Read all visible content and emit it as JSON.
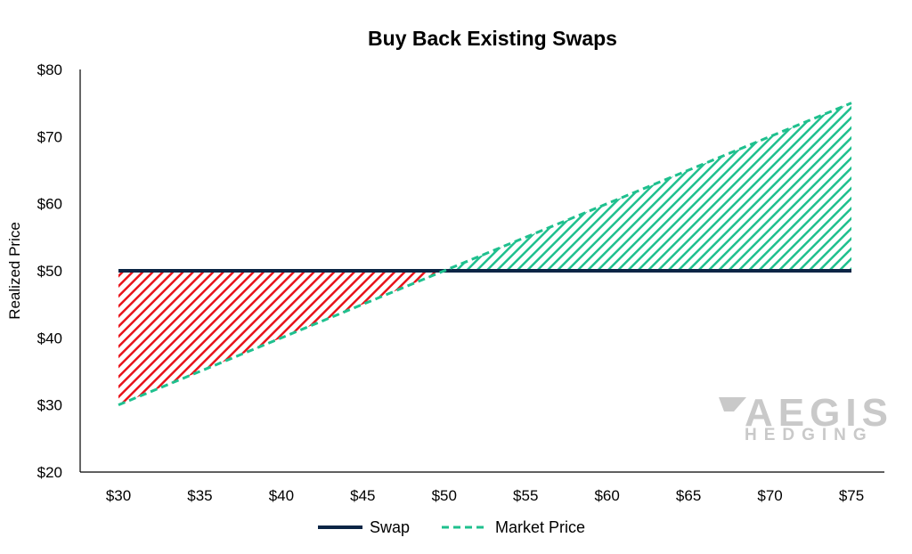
{
  "chart_data": {
    "type": "line",
    "title": "Buy Back Existing Swaps",
    "xlabel": "",
    "ylabel": "Realized Price",
    "x": [
      30,
      35,
      40,
      45,
      50,
      55,
      60,
      65,
      70,
      75
    ],
    "x_tick_labels": [
      "$30",
      "$35",
      "$40",
      "$45",
      "$50",
      "$55",
      "$60",
      "$65",
      "$70",
      "$75"
    ],
    "y_tick_labels": [
      "$20",
      "$30",
      "$40",
      "$50",
      "$60",
      "$70",
      "$80"
    ],
    "ylim": [
      20,
      80
    ],
    "xlim": [
      30,
      75
    ],
    "grid": false,
    "legend_position": "bottom",
    "series": [
      {
        "name": "Swap",
        "values": [
          50,
          50,
          50,
          50,
          50,
          50,
          50,
          50,
          50,
          50
        ],
        "color": "#0b2545",
        "style": "solid"
      },
      {
        "name": "Market Price",
        "values": [
          30,
          35,
          40,
          45,
          50,
          55,
          60,
          65,
          70,
          75
        ],
        "color": "#1fc08e",
        "style": "dashed"
      }
    ],
    "shading": [
      {
        "between": [
          "Swap",
          "Market Price"
        ],
        "where": "Market Price below Swap",
        "color": "#e8141b",
        "pattern": "diagonal-hatch"
      },
      {
        "between": [
          "Swap",
          "Market Price"
        ],
        "where": "Market Price above Swap",
        "color": "#1fc08e",
        "pattern": "diagonal-hatch"
      }
    ]
  },
  "watermark": {
    "line1": "AEGIS",
    "line2": "HEDGING"
  }
}
